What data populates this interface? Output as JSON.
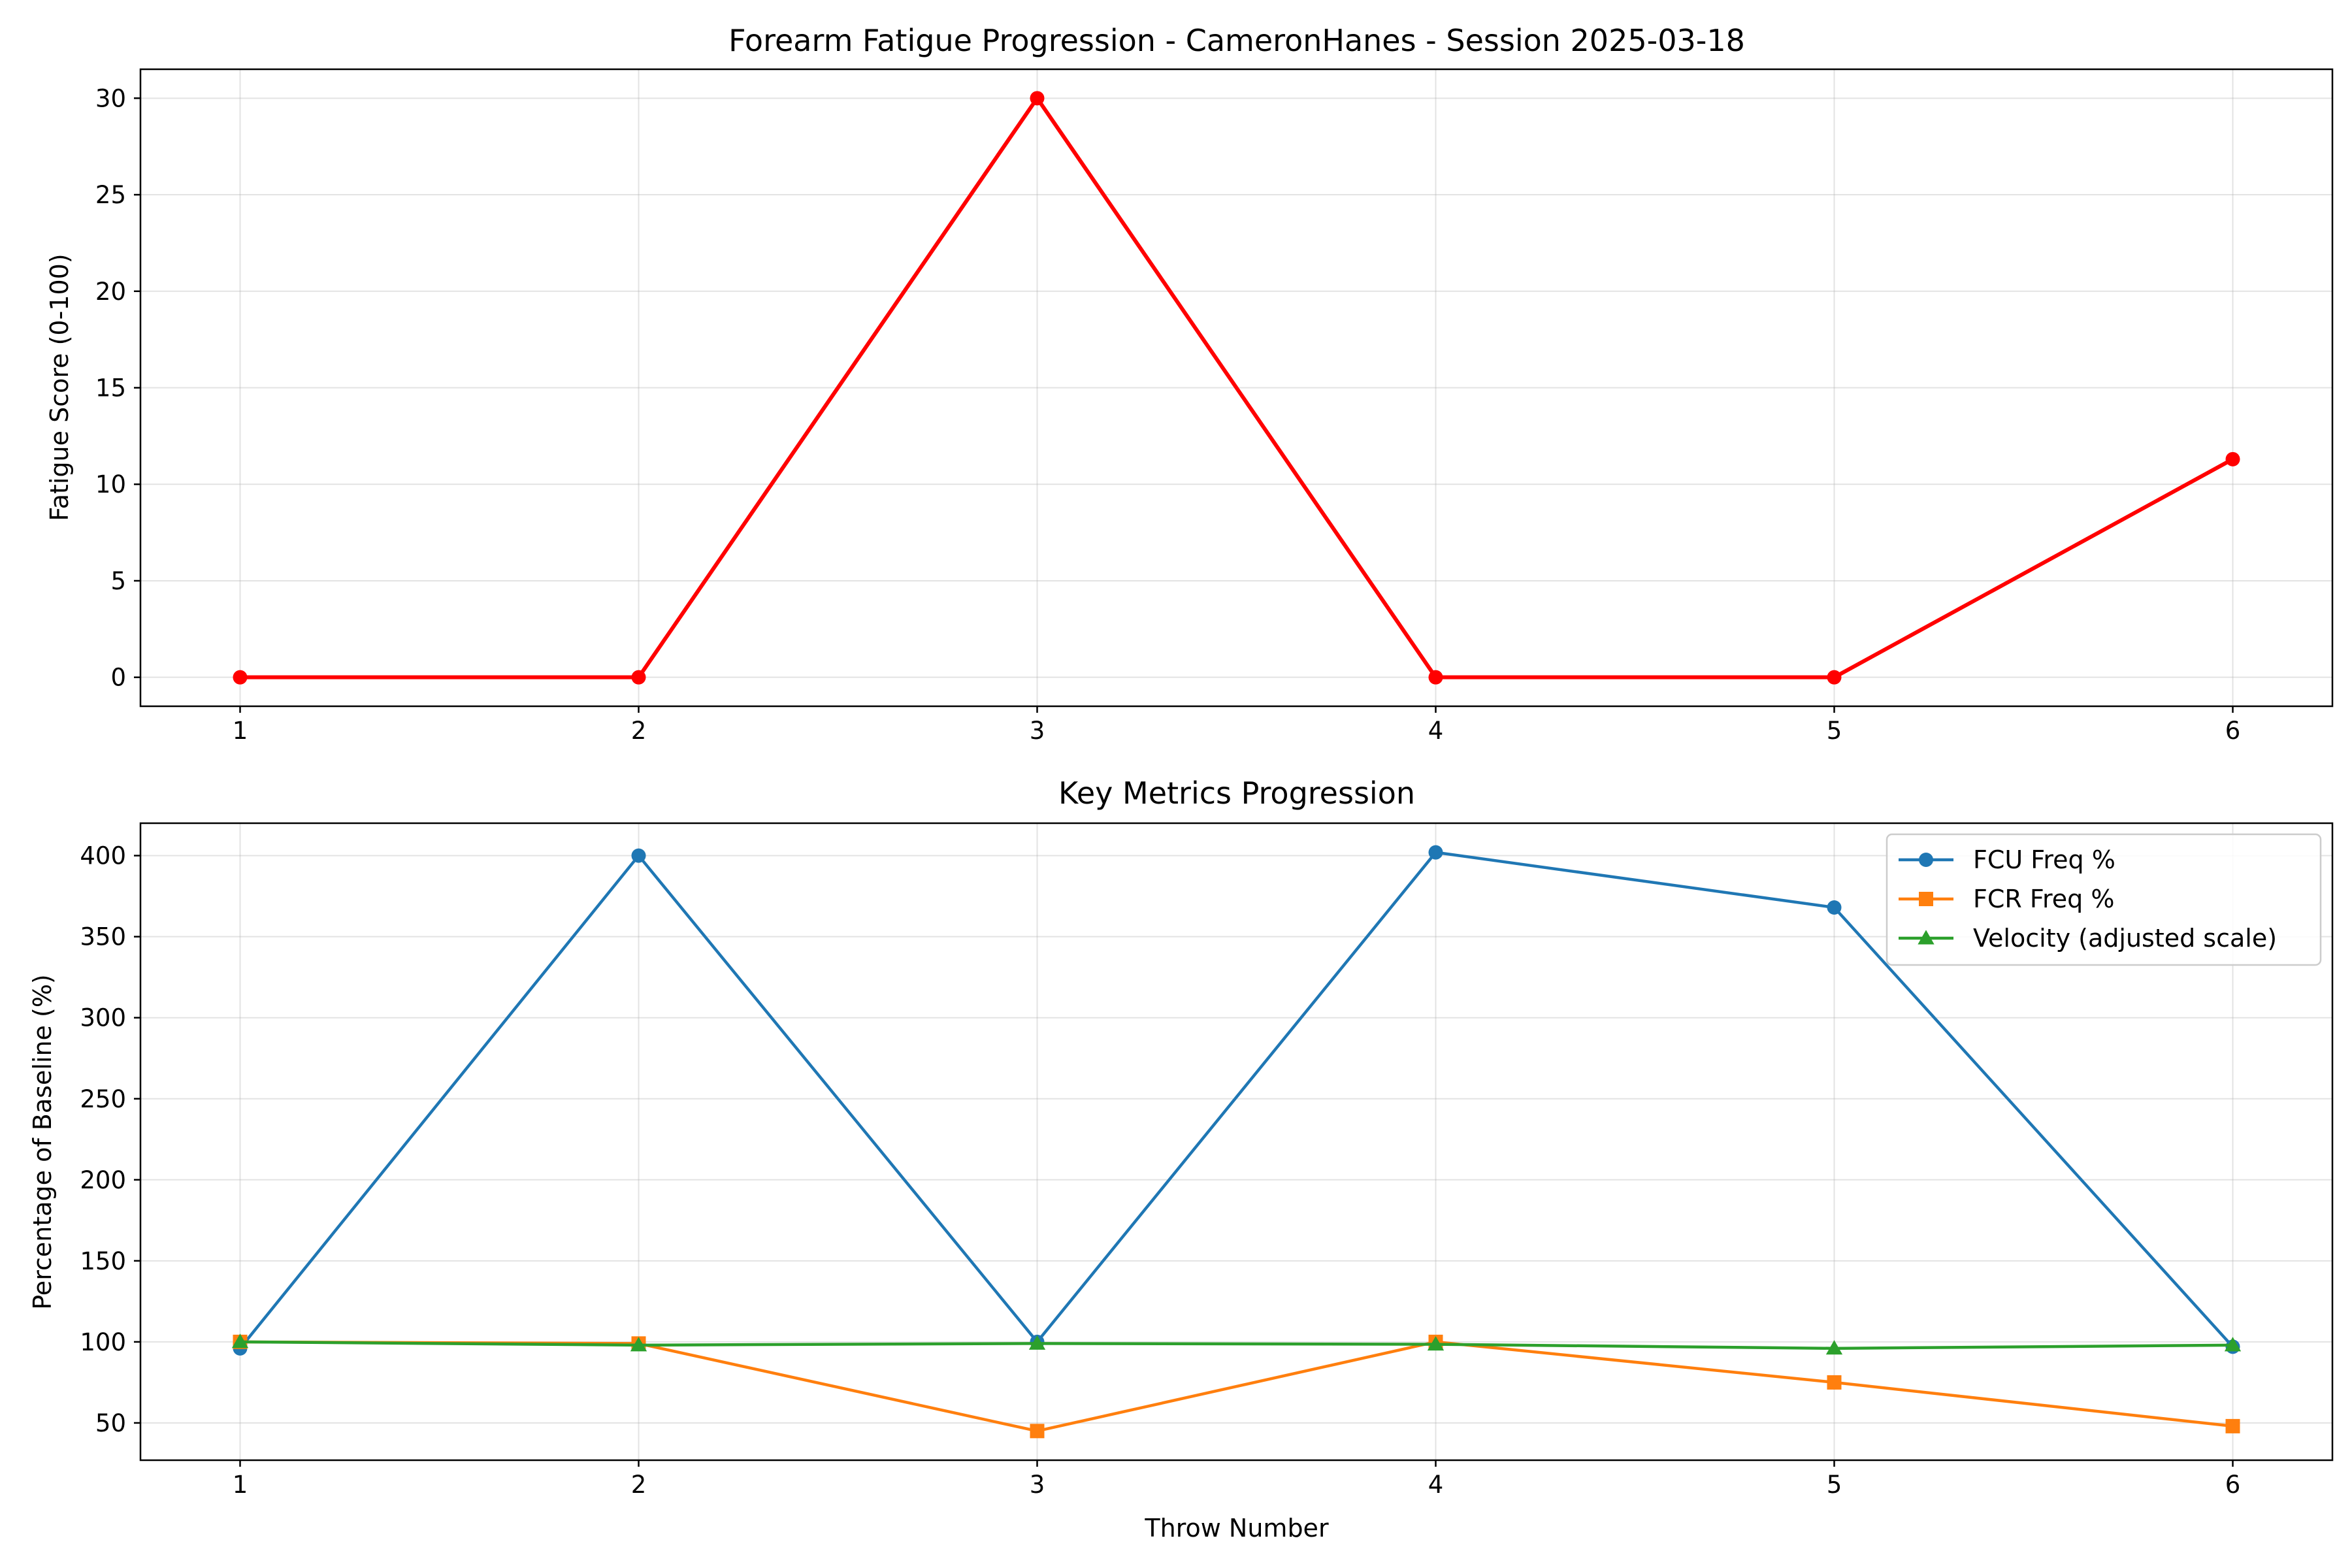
{
  "chart_data": [
    {
      "type": "line",
      "title": "Forearm Fatigue Progression - CameronHanes - Session 2025-03-18",
      "xlabel": "",
      "ylabel": "Fatigue Score (0-100)",
      "x": [
        1,
        2,
        3,
        4,
        5,
        6
      ],
      "xlim": [
        0.75,
        6.25
      ],
      "ylim": [
        -1.5,
        31.5
      ],
      "xticks": [
        1,
        2,
        3,
        4,
        5,
        6
      ],
      "yticks": [
        0,
        5,
        10,
        15,
        20,
        25,
        30
      ],
      "grid": true,
      "legend": null,
      "series": [
        {
          "values": [
            0,
            0,
            30,
            0,
            0,
            11.3
          ],
          "color": "#ff0000",
          "marker": "circle"
        }
      ]
    },
    {
      "type": "line",
      "title": "Key Metrics Progression",
      "xlabel": "Throw Number",
      "ylabel": "Percentage of Baseline (%)",
      "x": [
        1,
        2,
        3,
        4,
        5,
        6
      ],
      "xlim": [
        0.75,
        6.25
      ],
      "ylim": [
        27,
        420
      ],
      "xticks": [
        1,
        2,
        3,
        4,
        5,
        6
      ],
      "yticks": [
        50,
        100,
        150,
        200,
        250,
        300,
        350,
        400
      ],
      "grid": true,
      "legend": "top-right",
      "series": [
        {
          "name": "FCU Freq %",
          "values": [
            96,
            400,
            100,
            402,
            368,
            97
          ],
          "color": "#1f77b4",
          "marker": "circle"
        },
        {
          "name": "FCR Freq %",
          "values": [
            100,
            99,
            45,
            100,
            75,
            48
          ],
          "color": "#ff7f0e",
          "marker": "square"
        },
        {
          "name": "Velocity (adjusted scale)",
          "values": [
            100,
            98,
            99,
            98.5,
            96,
            98
          ],
          "color": "#2ca02c",
          "marker": "triangle"
        }
      ]
    }
  ]
}
